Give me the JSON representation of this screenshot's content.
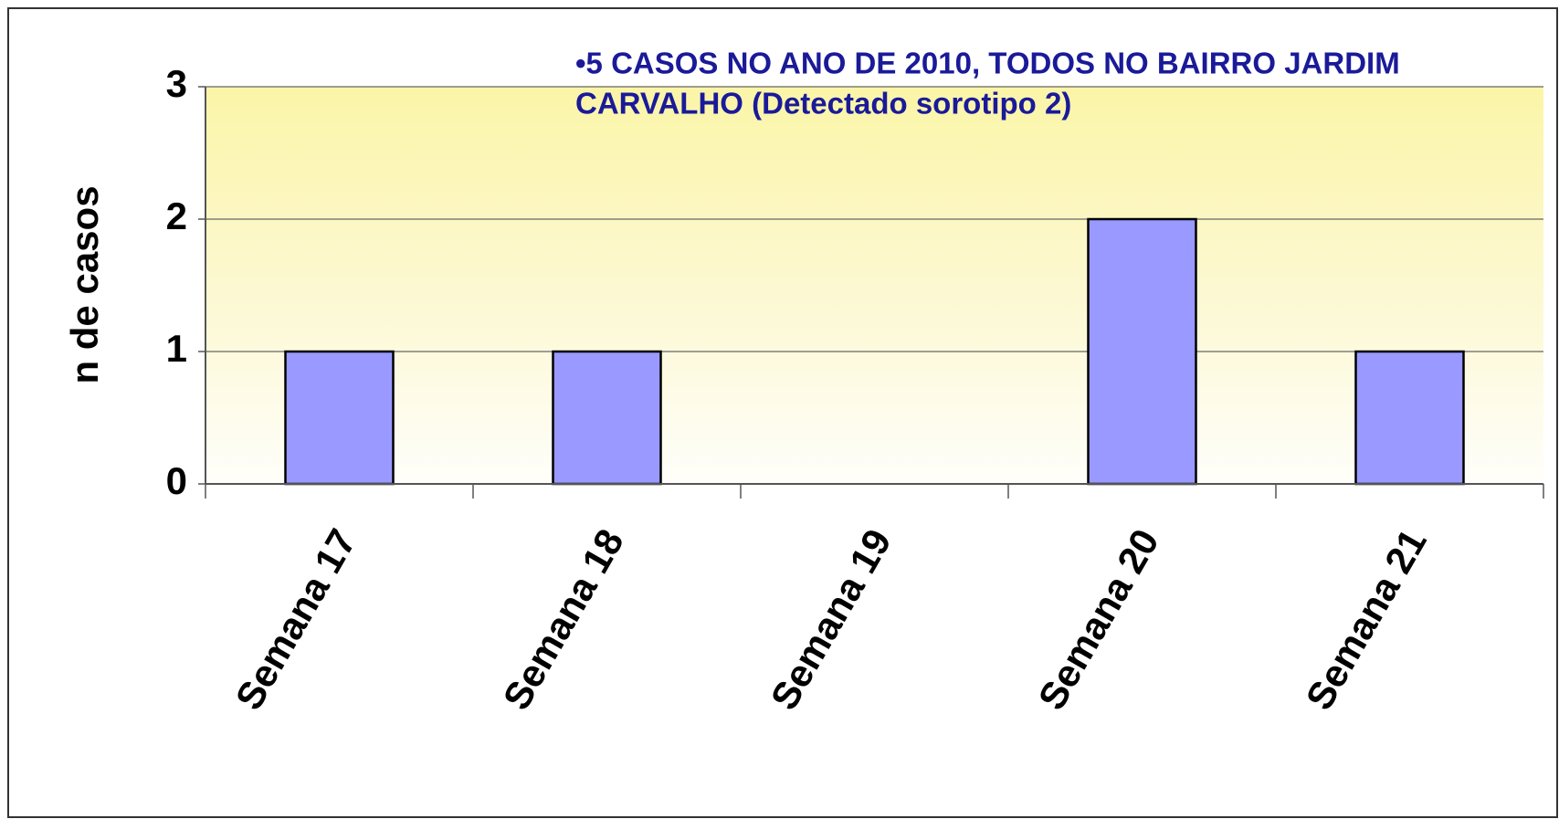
{
  "chart_data": {
    "type": "bar",
    "annotation": [
      "•5 CASOS NO ANO DE 2010, TODOS NO BAIRRO JARDIM",
      "CARVALHO (Detectado sorotipo 2)"
    ],
    "y_label": "n de casos",
    "categories": [
      "Semana 17",
      "Semana 18",
      "Semana 19",
      "Semana 20",
      "Semana 21"
    ],
    "values": [
      1,
      1,
      0,
      2,
      1
    ],
    "color": "#9999ff",
    "ylim": [
      0,
      3
    ],
    "yticks": [
      0,
      1,
      2,
      3
    ],
    "grid": true
  }
}
